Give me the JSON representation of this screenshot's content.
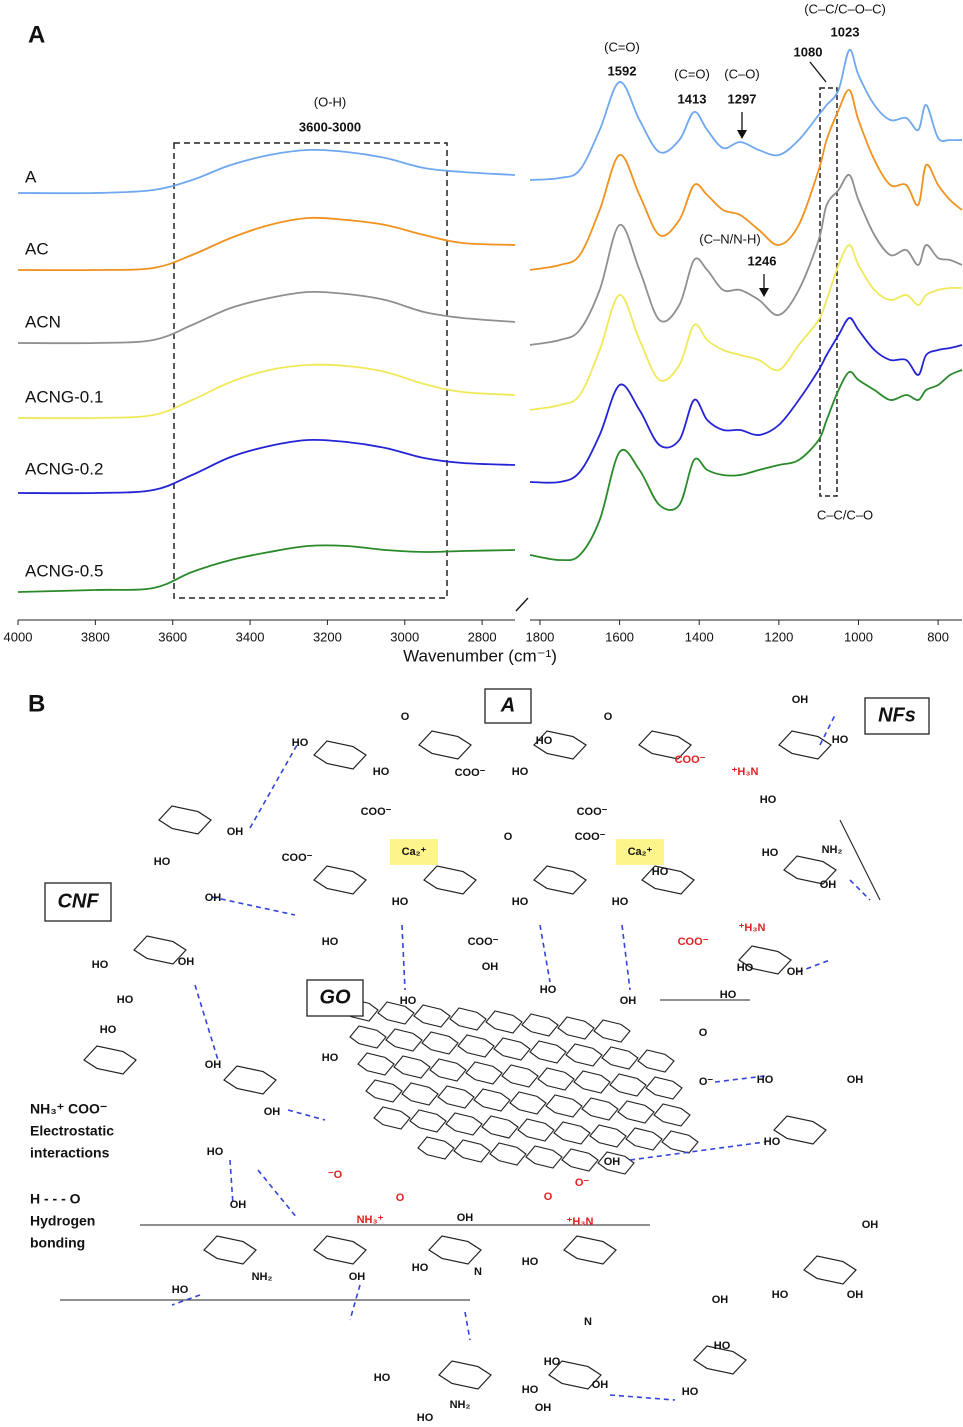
{
  "chart_data": [
    {
      "type": "line",
      "panel": "A",
      "xlabel": "Wavenumber (cm⁻¹)",
      "xlim": [
        4000,
        2715
      ],
      "xticks": [
        4000,
        3800,
        3600,
        3400,
        3200,
        3000,
        2800
      ],
      "ylim": [
        0,
        620
      ],
      "x": [
        4000,
        3800,
        3650,
        3550,
        3450,
        3350,
        3250,
        3150,
        3050,
        2950,
        2850,
        2715
      ],
      "annotations": [
        {
          "label": "(O-H)",
          "range": "3600-3000"
        }
      ],
      "series": [
        {
          "name": "A",
          "color": "#6fa8f0",
          "values": [
            427,
            427,
            430,
            440,
            455,
            465,
            470,
            468,
            462,
            452,
            448,
            445
          ]
        },
        {
          "name": "AC",
          "color": "#f0921e",
          "values": [
            350,
            350,
            352,
            365,
            382,
            395,
            402,
            400,
            395,
            385,
            377,
            375
          ]
        },
        {
          "name": "ACN",
          "color": "#8f8f8f",
          "values": [
            277,
            277,
            280,
            295,
            312,
            322,
            328,
            326,
            320,
            308,
            302,
            298
          ]
        },
        {
          "name": "ACNG-0.1",
          "color": "#efe95a",
          "values": [
            202,
            202,
            205,
            220,
            238,
            250,
            255,
            254,
            248,
            236,
            228,
            225
          ]
        },
        {
          "name": "ACNG-0.2",
          "color": "#2424d6",
          "values": [
            127,
            127,
            130,
            145,
            163,
            174,
            180,
            178,
            172,
            162,
            157,
            155
          ]
        },
        {
          "name": "ACNG-0.5",
          "color": "#2a8a2a",
          "values": [
            28,
            30,
            32,
            48,
            60,
            68,
            74,
            74,
            70,
            68,
            69,
            70
          ]
        }
      ]
    },
    {
      "type": "line",
      "xlim": [
        1825,
        740
      ],
      "xticks": [
        1800,
        1600,
        1400,
        1200,
        1000,
        800
      ],
      "ylim": [
        0,
        620
      ],
      "x": [
        1825,
        1750,
        1700,
        1650,
        1600,
        1550,
        1500,
        1450,
        1413,
        1380,
        1340,
        1297,
        1250,
        1200,
        1150,
        1100,
        1080,
        1050,
        1023,
        1000,
        960,
        920,
        880,
        850,
        830,
        800,
        770,
        740
      ],
      "annotations": [
        {
          "label": "(C=O)",
          "x": 1592
        },
        {
          "label": "(C=O)",
          "x": 1413
        },
        {
          "label": "(C–O)",
          "x": 1297
        },
        {
          "label": "(C–C/C–O–C)",
          "x": 1023
        },
        {
          "x": 1080
        },
        {
          "label": "(C–N/N-H)",
          "x": 1246
        },
        {
          "label": "C–C/C–O"
        }
      ],
      "series": [
        {
          "color": "#6fa8f0",
          "values": [
            440,
            442,
            450,
            490,
            538,
            500,
            468,
            480,
            508,
            490,
            472,
            478,
            470,
            465,
            480,
            505,
            515,
            530,
            570,
            545,
            515,
            500,
            502,
            490,
            515,
            482,
            480,
            480
          ]
        },
        {
          "color": "#f0921e",
          "values": [
            350,
            355,
            365,
            410,
            465,
            425,
            385,
            400,
            435,
            425,
            410,
            405,
            390,
            375,
            395,
            450,
            480,
            510,
            530,
            500,
            460,
            435,
            435,
            415,
            455,
            435,
            420,
            410
          ]
        },
        {
          "color": "#8f8f8f",
          "values": [
            275,
            280,
            290,
            330,
            395,
            350,
            300,
            315,
            360,
            350,
            330,
            330,
            320,
            305,
            330,
            380,
            415,
            430,
            445,
            420,
            385,
            365,
            370,
            355,
            375,
            362,
            360,
            355
          ]
        },
        {
          "color": "#efe95a",
          "values": [
            210,
            215,
            225,
            270,
            325,
            280,
            240,
            255,
            295,
            280,
            270,
            265,
            260,
            250,
            275,
            300,
            320,
            355,
            375,
            355,
            330,
            320,
            325,
            315,
            325,
            330,
            332,
            332
          ]
        },
        {
          "color": "#2424d6",
          "values": [
            138,
            138,
            148,
            185,
            235,
            210,
            175,
            180,
            220,
            200,
            190,
            190,
            185,
            195,
            220,
            250,
            265,
            285,
            302,
            290,
            270,
            260,
            260,
            245,
            265,
            270,
            272,
            275
          ]
        },
        {
          "color": "#2a8a2a",
          "values": [
            65,
            60,
            65,
            100,
            168,
            150,
            115,
            115,
            160,
            150,
            145,
            145,
            150,
            155,
            160,
            180,
            200,
            230,
            248,
            240,
            230,
            220,
            225,
            220,
            230,
            235,
            245,
            250
          ]
        }
      ]
    }
  ],
  "diagram": {
    "panel": "B",
    "boxes": [
      "A",
      "NFs",
      "CNF",
      "GO"
    ],
    "ions": [
      "Ca₂⁺",
      "Ca₂⁺"
    ],
    "legend": [
      "NH₃⁺  COO⁻",
      "Electrostatic",
      "interactions",
      "H - - - O",
      "Hydrogen",
      "bonding"
    ],
    "groups": [
      "HO",
      "O",
      "HO",
      "COO⁻",
      "O",
      "HO",
      "HO",
      {
        "text": "COO⁻",
        "color": "#e02020"
      },
      "COO⁻",
      "O",
      "COO⁻",
      "COO⁻",
      "COO⁻",
      "HO",
      "COO⁻",
      "HO",
      "HO",
      "HO",
      {
        "text": "COO⁻",
        "color": "#e02020"
      },
      "HO",
      {
        "text": "⁺H₃N",
        "color": "#e02020"
      },
      "OH",
      "HO",
      "HO",
      "NH₂",
      "HO",
      "OH",
      {
        "text": "⁺H₃N",
        "color": "#e02020"
      },
      "HO",
      "OH",
      "HO",
      "OH",
      "HO",
      "OH",
      "HO",
      "OH",
      "HO",
      "HO",
      "OH",
      "OH",
      "HO",
      "OH",
      "HO",
      "NH₂",
      {
        "text": "NH₃⁺",
        "color": "#e02020"
      },
      "OH",
      "OH",
      "HO",
      "N",
      {
        "text": "⁺H₃N",
        "color": "#e02020"
      },
      "HO",
      "N",
      "HO",
      "OH",
      "HO",
      "OH",
      "HO",
      "O",
      "O⁻",
      {
        "text": "⁻O",
        "color": "#e02020"
      },
      {
        "text": "O",
        "color": "#e02020"
      },
      {
        "text": "O",
        "color": "#e02020"
      },
      {
        "text": "O⁻",
        "color": "#e02020"
      },
      "OH",
      "HO",
      "HO",
      "OH",
      "OH",
      "HO",
      "OH",
      "OH",
      "HO",
      "HO",
      "HO",
      "HO",
      "NH₂",
      "HO",
      "OH",
      "OH",
      "HO"
    ]
  }
}
